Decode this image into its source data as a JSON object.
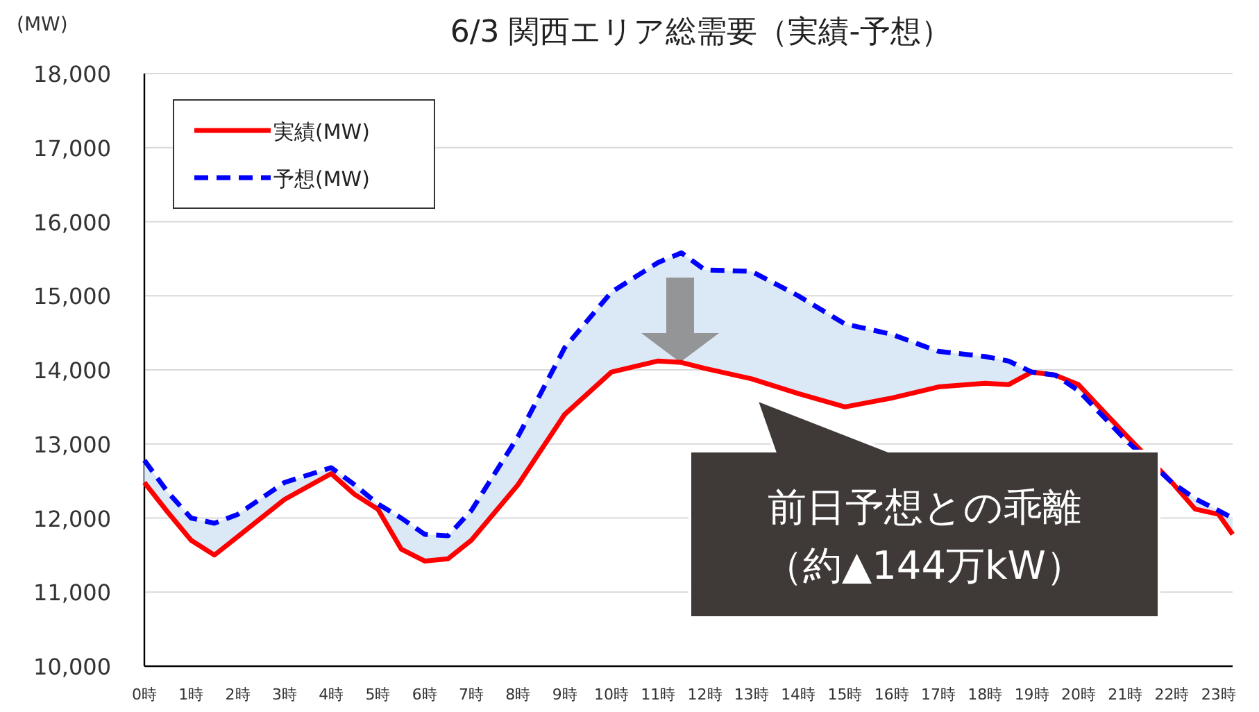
{
  "chart_data": {
    "type": "line",
    "title": "6/3 関西エリア総需要（実績-予想）",
    "ylabel": "(MW)",
    "x": [
      0,
      0.5,
      1,
      1.5,
      2,
      3,
      4,
      4.5,
      5,
      5.5,
      6,
      6.5,
      7,
      8,
      9,
      10,
      11,
      11.5,
      12,
      13,
      14,
      15,
      16,
      17,
      18,
      18.5,
      19,
      19.5,
      20,
      21,
      22,
      22.5,
      23,
      23.3
    ],
    "series": [
      {
        "name": "実績(MW)",
        "color": "#ff0000",
        "line_style": "solid",
        "values": [
          12480,
          12080,
          11700,
          11500,
          11750,
          12250,
          12600,
          12320,
          12120,
          11580,
          11420,
          11450,
          11700,
          12450,
          13400,
          13970,
          14120,
          14100,
          14020,
          13880,
          13680,
          13500,
          13620,
          13770,
          13820,
          13800,
          13970,
          13930,
          13800,
          13130,
          12480,
          12120,
          12050,
          11780
        ]
      },
      {
        "name": "予想(MW)",
        "color": "#0000ff",
        "line_style": "dashed",
        "values": [
          12780,
          12350,
          12000,
          11930,
          12050,
          12480,
          12680,
          12450,
          12190,
          12000,
          11780,
          11760,
          12100,
          13100,
          14300,
          15050,
          15450,
          15580,
          15350,
          15330,
          15000,
          14620,
          14480,
          14250,
          14180,
          14120,
          13970,
          13930,
          13720,
          13060,
          12480,
          12260,
          12100,
          12000
        ],
        "lower": [
          12480,
          12080,
          11700,
          11500,
          11750,
          12250,
          12600,
          12320,
          12120,
          11580,
          11420,
          11450,
          11700,
          12450,
          13400,
          13970,
          14120,
          14100,
          14020,
          13880,
          13680,
          13500,
          13620,
          13770,
          13820,
          13800,
          13970,
          13930,
          13800,
          13130,
          12480,
          12120,
          12050,
          11780
        ],
        "upper": [
          12780,
          12350,
          12000,
          11930,
          12050,
          12480,
          12680,
          12450,
          12190,
          12000,
          11780,
          11760,
          12100,
          13100,
          14300,
          15050,
          15450,
          15580,
          15350,
          15330,
          15000,
          14620,
          14480,
          14250,
          14180,
          14120,
          13970,
          13930,
          13720,
          13060,
          12480,
          12260,
          12100,
          12000
        ]
      }
    ],
    "xlim": [
      0,
      23.3
    ],
    "xticks": [
      {
        "value": 0,
        "label": "0時"
      },
      {
        "value": 1,
        "label": "1時"
      },
      {
        "value": 2,
        "label": "2時"
      },
      {
        "value": 3,
        "label": "3時"
      },
      {
        "value": 4,
        "label": "4時"
      },
      {
        "value": 5,
        "label": "5時"
      },
      {
        "value": 6,
        "label": "6時"
      },
      {
        "value": 7,
        "label": "7時"
      },
      {
        "value": 8,
        "label": "8時"
      },
      {
        "value": 9,
        "label": "9時"
      },
      {
        "value": 10,
        "label": "10時"
      },
      {
        "value": 11,
        "label": "11時"
      },
      {
        "value": 12,
        "label": "12時"
      },
      {
        "value": 13,
        "label": "13時"
      },
      {
        "value": 14,
        "label": "14時"
      },
      {
        "value": 15,
        "label": "15時"
      },
      {
        "value": 16,
        "label": "16時"
      },
      {
        "value": 17,
        "label": "17時"
      },
      {
        "value": 18,
        "label": "18時"
      },
      {
        "value": 19,
        "label": "19時"
      },
      {
        "value": 20,
        "label": "20時"
      },
      {
        "value": 21,
        "label": "21時"
      },
      {
        "value": 22,
        "label": "22時"
      },
      {
        "value": 23,
        "label": "23時"
      }
    ],
    "ylim": [
      10000,
      18000
    ],
    "yticks": [
      {
        "value": 10000,
        "label": "10,000"
      },
      {
        "value": 11000,
        "label": "11,000"
      },
      {
        "value": 12000,
        "label": "12,000"
      },
      {
        "value": 13000,
        "label": "13,000"
      },
      {
        "value": 14000,
        "label": "14,000"
      },
      {
        "value": 15000,
        "label": "15,000"
      },
      {
        "value": 16000,
        "label": "16,000"
      },
      {
        "value": 17000,
        "label": "17,000"
      },
      {
        "value": 18000,
        "label": "18,000"
      }
    ],
    "grid": "y",
    "legend": "top left",
    "marker": "none",
    "annotations": [
      "前日予想との乖離",
      "（約▲144万kW）"
    ]
  }
}
